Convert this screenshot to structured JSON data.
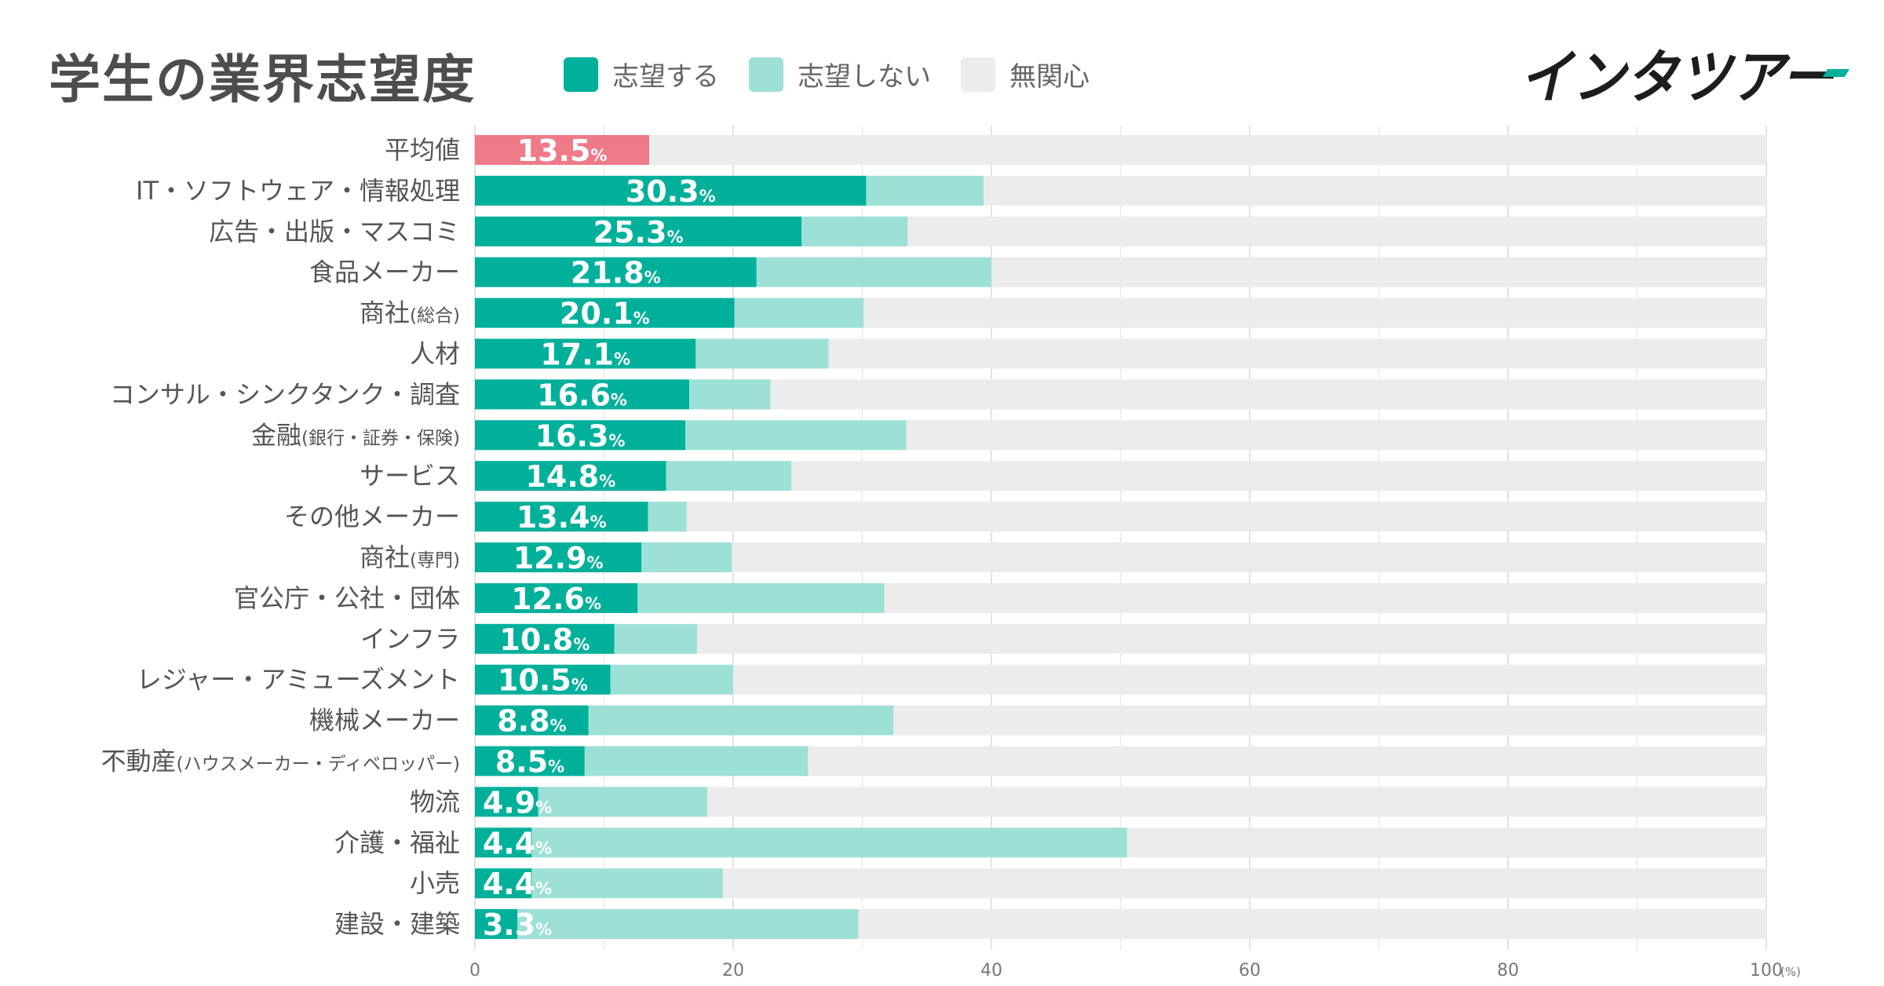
{
  "title": "学生の業界志望度",
  "brand": "インタツアー",
  "legend": [
    {
      "label": "志望する",
      "color": "#00b09b"
    },
    {
      "label": "志望しない",
      "color": "#9de0d6"
    },
    {
      "label": "無関心",
      "color": "#ececec"
    }
  ],
  "colors": {
    "average": "#ef7a88",
    "want": "#00b09b",
    "not_want": "#9de0d6",
    "indifferent": "#ececec",
    "brand_accent": "#00b09b"
  },
  "chart_data": {
    "type": "bar",
    "orientation": "horizontal",
    "stacked": true,
    "xlim": [
      0,
      100
    ],
    "x_ticks": [
      0,
      20,
      40,
      60,
      80,
      100
    ],
    "x_unit": "(%)",
    "value_suffix": "%",
    "categories": [
      {
        "name": "平均値",
        "note": ""
      },
      {
        "name": "IT・ソフトウェア・情報処理",
        "note": ""
      },
      {
        "name": "広告・出版・マスコミ",
        "note": ""
      },
      {
        "name": "食品メーカー",
        "note": ""
      },
      {
        "name": "商社",
        "note": "(総合)"
      },
      {
        "name": "人材",
        "note": ""
      },
      {
        "name": "コンサル・シンクタンク・調査",
        "note": ""
      },
      {
        "name": "金融",
        "note": "(銀行・証券・保険)"
      },
      {
        "name": "サービス",
        "note": ""
      },
      {
        "name": "その他メーカー",
        "note": ""
      },
      {
        "name": "商社",
        "note": "(専門)"
      },
      {
        "name": "官公庁・公社・団体",
        "note": ""
      },
      {
        "name": "インフラ",
        "note": ""
      },
      {
        "name": "レジャー・アミューズメント",
        "note": ""
      },
      {
        "name": "機械メーカー",
        "note": ""
      },
      {
        "name": "不動産",
        "note": "(ハウスメーカー・ディベロッパー)"
      },
      {
        "name": "物流",
        "note": ""
      },
      {
        "name": "介護・福祉",
        "note": ""
      },
      {
        "name": "小売",
        "note": ""
      },
      {
        "name": "建設・建築",
        "note": ""
      }
    ],
    "series": [
      {
        "name": "志望する",
        "values": [
          13.5,
          30.3,
          25.3,
          21.8,
          20.1,
          17.1,
          16.6,
          16.3,
          14.8,
          13.4,
          12.9,
          12.6,
          10.8,
          10.5,
          8.8,
          8.5,
          4.9,
          4.4,
          4.4,
          3.3
        ]
      },
      {
        "name": "志望しない",
        "values": [
          0,
          9.1,
          8.2,
          18.2,
          10.0,
          10.3,
          6.3,
          17.1,
          9.7,
          3.0,
          7.0,
          19.1,
          6.4,
          9.5,
          23.6,
          17.3,
          13.1,
          46.1,
          14.8,
          26.4
        ]
      },
      {
        "name": "無関心",
        "values": [
          86.5,
          60.6,
          66.5,
          60.0,
          69.9,
          72.6,
          77.1,
          66.6,
          75.5,
          83.6,
          80.1,
          68.3,
          82.8,
          80.0,
          67.6,
          74.2,
          82.0,
          49.5,
          80.8,
          70.3
        ]
      }
    ]
  }
}
